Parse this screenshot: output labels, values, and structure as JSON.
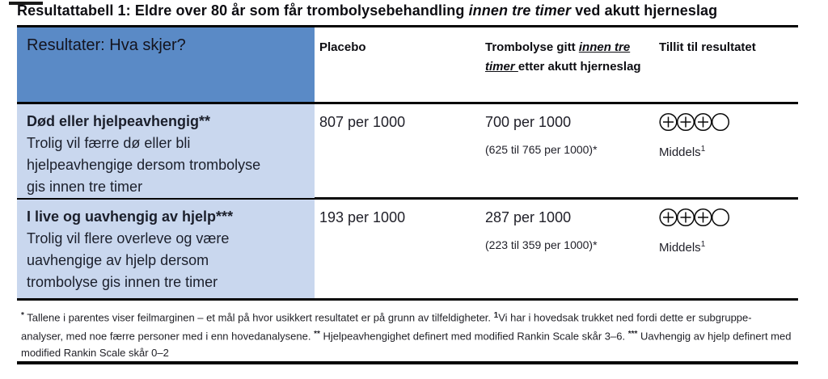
{
  "title": {
    "part1": "Resultattabell 1: Eldre over 80 år som får trombolysebehandling ",
    "italic": "innen tre timer",
    "part2": " ved akutt hjerneslag"
  },
  "colors": {
    "header_blue": "#5a8ac6",
    "row_blue": "#c9d7ee",
    "border": "#060606"
  },
  "table": {
    "header": {
      "col1": "Resultater: Hva skjer?",
      "col2": "Placebo",
      "col3_part1": "Trombolyse gitt ",
      "col3_italic": "innen tre timer ",
      "col3_part2": "etter akutt hjerneslag",
      "col4": "Tillit til resultatet"
    },
    "rows": [
      {
        "outcome_title": "Død eller hjelpeavhengig**",
        "outcome_desc": "Trolig vil færre dø eller bli\nhjelpeavhengige dersom trombolyse\ngis innen tre timer",
        "placebo": "807 per 1000",
        "intervention": "700 per 1000",
        "ci": "(625 til 765 per 1000)*",
        "grade_label": "Middels",
        "grade_sup": "1",
        "grade_filled": 3,
        "grade_total": 4
      },
      {
        "outcome_title": "I live og uavhengig av hjelp***",
        "outcome_desc": "Trolig vil flere overleve og være\nuavhengige av hjelp dersom\ntrombolyse gis innen tre timer",
        "placebo": "193 per 1000",
        "intervention": "287 per 1000",
        "ci": "(223 til 359 per 1000)*",
        "grade_label": "Middels",
        "grade_sup": "1",
        "grade_filled": 3,
        "grade_total": 4
      }
    ],
    "footnote": {
      "sup1": "*",
      "text1": " Tallene i parentes viser feilmarginen – et mål på hvor usikkert resultatet er på grunn av tilfeldigheter. ",
      "sup2": "1",
      "text2": "Vi har i hovedsak trukket ned fordi dette er subgruppe-analyser, med noe færre personer med i enn hovedanalysene. ",
      "sup3": "**",
      "text3": " Hjelpeavhengighet definert med modified Rankin Scale skår 3–6. ",
      "sup4": "***",
      "text4": " Uavhengig av hjelp definert med modified Rankin Scale skår 0–2"
    }
  }
}
